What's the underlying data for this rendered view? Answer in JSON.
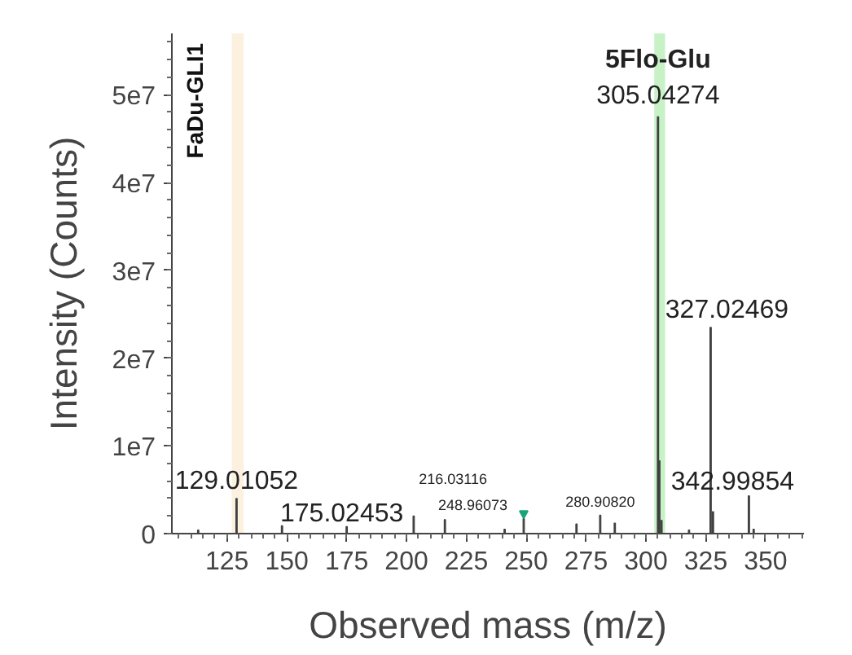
{
  "chart_data": {
    "type": "bar",
    "xlabel": "Observed mass (m/z)",
    "ylabel": "Intensity (Counts)",
    "x": [
      113,
      129.01052,
      148,
      175.02453,
      203,
      216.03116,
      241,
      248.96073,
      271,
      280.9082,
      287,
      305.04274,
      305.6,
      306.5,
      318,
      327.02469,
      328.0,
      342.99854,
      345
    ],
    "series": [
      {
        "color": "#404040",
        "values": [
          400000,
          4000000,
          900000,
          800000,
          2000000,
          1600000,
          500000,
          1700000,
          1100000,
          2100000,
          1200000,
          47500000,
          8300000,
          1500000,
          400000,
          23500000,
          2500000,
          4300000,
          500000
        ]
      },
      {
        "type": "scatter",
        "marker": "triangle",
        "color": "#1aa37a",
        "x": [
          248.96073
        ],
        "values": [
          2300000
        ]
      }
    ],
    "xlim": [
      102,
      366
    ],
    "ylim": [
      0,
      57000000
    ],
    "xticks": [
      125,
      150,
      175,
      200,
      225,
      250,
      275,
      300,
      325,
      350
    ],
    "yticks": [
      {
        "value": 0,
        "label": "0"
      },
      {
        "value": 10000000,
        "label": "1e7"
      },
      {
        "value": 20000000,
        "label": "2e7"
      },
      {
        "value": 30000000,
        "label": "3e7"
      },
      {
        "value": 40000000,
        "label": "4e7"
      },
      {
        "value": 50000000,
        "label": "5e7"
      }
    ],
    "bands": [
      {
        "axis": "x",
        "from": 303.5,
        "to": 308,
        "color": "#c6f2c6"
      },
      {
        "axis": "x",
        "from": 127,
        "to": 132,
        "color": "#fcf0df"
      }
    ],
    "annotations": [
      {
        "text": "129.01052",
        "x": 129.01052,
        "y": 4000000
      },
      {
        "text": "175.02453",
        "x": 175.02453,
        "y": 800000
      },
      {
        "text": "216.03116",
        "x": 216.03116,
        "y": 1600000
      },
      {
        "text": "248.96073",
        "x": 248.96073,
        "y": 1700000
      },
      {
        "text": "280.90820",
        "x": 280.9082,
        "y": 2100000
      },
      {
        "text": "305.04274",
        "x": 305.04274,
        "y": 47500000
      },
      {
        "text": "5Flo-Glu",
        "x": 305.04274,
        "y": 47500000
      },
      {
        "text": "327.02469",
        "x": 327.02469,
        "y": 23500000
      },
      {
        "text": "342.99854",
        "x": 342.99854,
        "y": 4300000
      },
      "FaDu-GLI1"
    ],
    "grid": false
  }
}
